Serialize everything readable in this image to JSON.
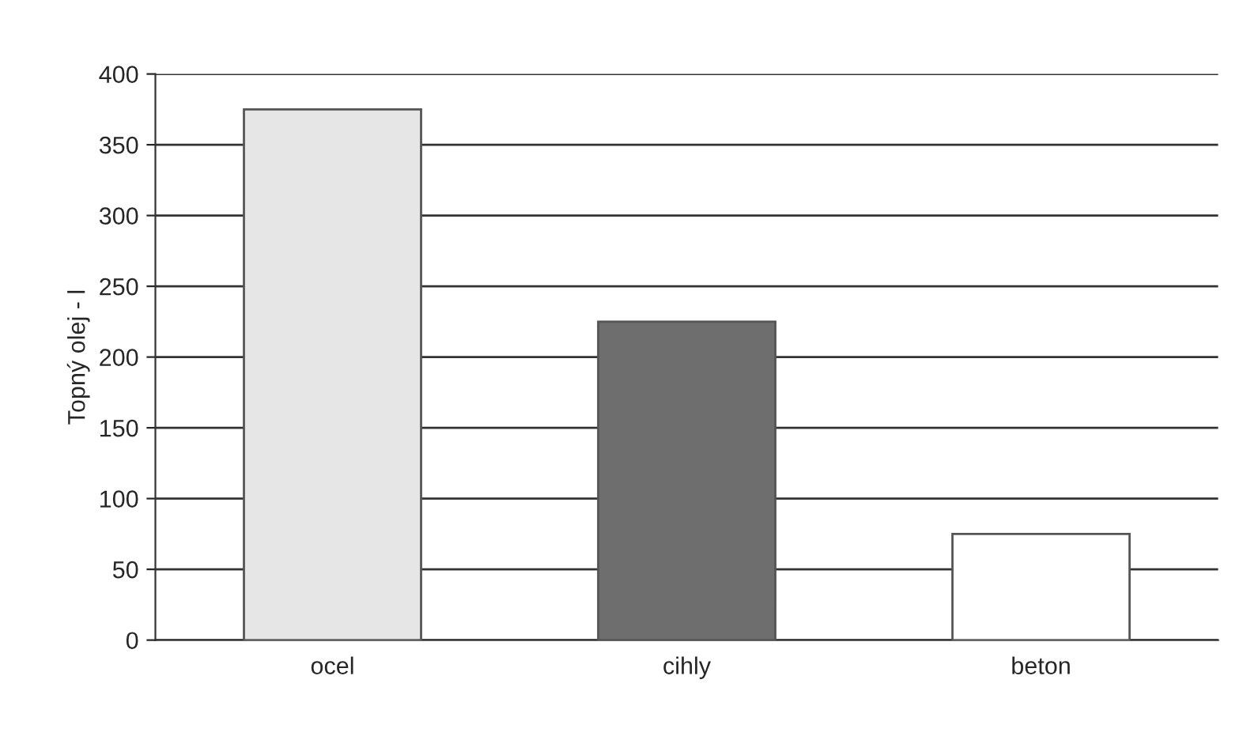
{
  "chart_data": {
    "type": "bar",
    "ylabel": "Topný olej - l",
    "categories": [
      "ocel",
      "cihly",
      "beton"
    ],
    "values": [
      375,
      225,
      75
    ],
    "colors": [
      "#e6e6e6",
      "#6e6e6e",
      "#ffffff"
    ],
    "ylim": [
      0,
      400
    ],
    "yticks": [
      0,
      50,
      100,
      150,
      200,
      250,
      300,
      350,
      400
    ],
    "grid": "y",
    "legend": false
  }
}
